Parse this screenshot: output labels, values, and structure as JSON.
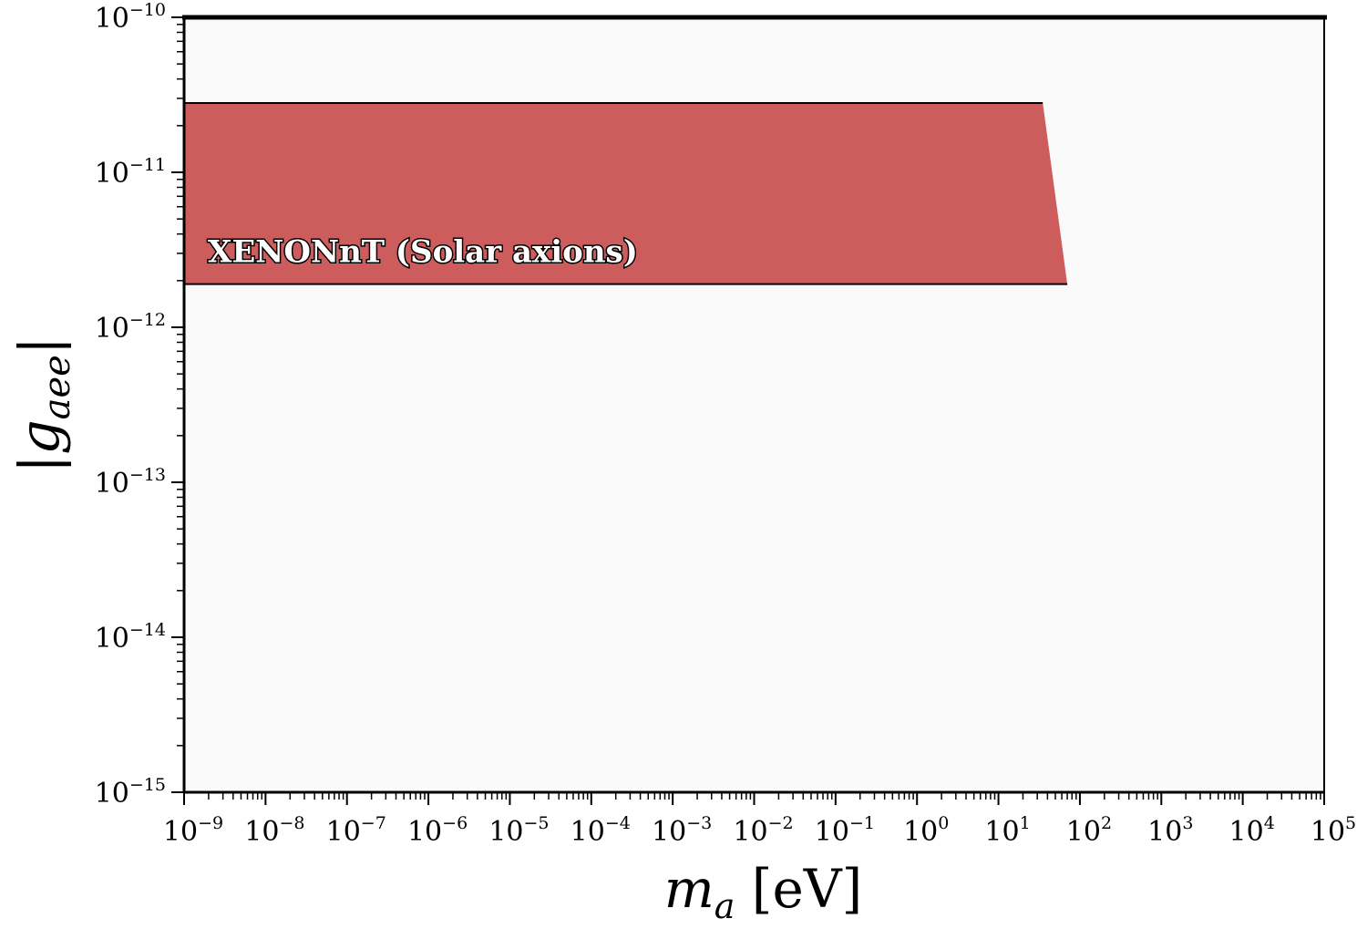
{
  "chart_data": {
    "type": "area",
    "xlabel": {
      "base": "m",
      "subscript": "a",
      "unit": "[eV]"
    },
    "ylabel": {
      "base": "|g",
      "subscript": "aee",
      "close": "|"
    },
    "xscale": "log",
    "yscale": "log",
    "xlim": [
      1e-09,
      100000.0
    ],
    "ylim": [
      1e-15,
      1e-10
    ],
    "x_tick_exponents": [
      -9,
      -8,
      -7,
      -6,
      -5,
      -4,
      -3,
      -2,
      -1,
      0,
      1,
      2,
      3,
      4,
      5
    ],
    "y_tick_exponents": [
      -15,
      -14,
      -13,
      -12,
      -11,
      -10
    ],
    "grid": false,
    "colors": {
      "region_fill": "#cd5c5c",
      "region_edge": "#000000",
      "plot_background": "#fafafa",
      "axis": "#000000"
    },
    "series": [
      {
        "name": "XENONnT (Solar axions)",
        "kind": "excluded-region",
        "x": [
          1e-09,
          35,
          70,
          1e-09
        ],
        "y": [
          2.8e-11,
          2.8e-11,
          1.9e-12,
          1.9e-12
        ]
      }
    ]
  }
}
